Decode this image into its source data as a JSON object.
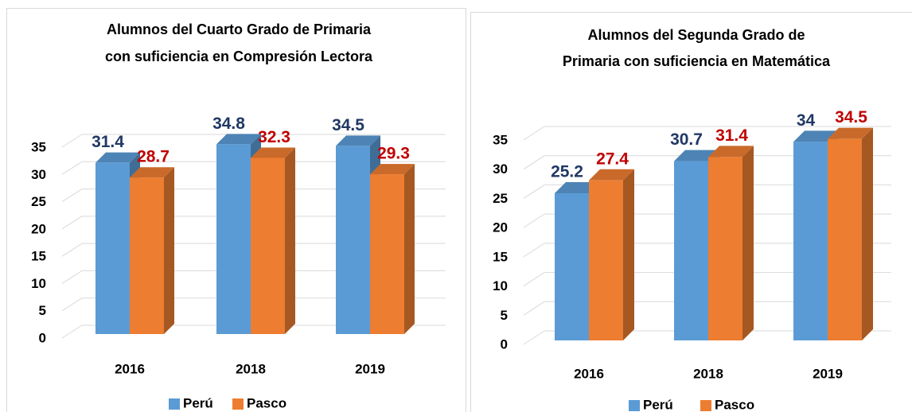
{
  "chart_data": [
    {
      "type": "bar3d",
      "title": [
        "Alumnos del Cuarto Grado de Primaria",
        "con suficiencia en Compresión Lectora"
      ],
      "categories": [
        "2016",
        "2018",
        "2019"
      ],
      "series": [
        {
          "name": "Perú",
          "color": "#5b9bd5",
          "label_color": "#203864",
          "values": [
            31.4,
            34.8,
            34.5
          ]
        },
        {
          "name": "Pasco",
          "color": "#ed7d31",
          "label_color": "#c00000",
          "values": [
            28.7,
            32.3,
            29.3
          ]
        }
      ],
      "ylim": [
        0,
        35
      ],
      "yticks": [
        0,
        5,
        10,
        15,
        20,
        25,
        30,
        35
      ],
      "grid": true,
      "legend": "bottom"
    },
    {
      "type": "bar3d",
      "title": [
        "Alumnos del Segunda Grado de",
        "Primaria con suficiencia en Matemática"
      ],
      "categories": [
        "2016",
        "2018",
        "2019"
      ],
      "series": [
        {
          "name": "Perú",
          "color": "#5b9bd5",
          "label_color": "#203864",
          "values": [
            25.2,
            30.7,
            34
          ]
        },
        {
          "name": "Pasco",
          "color": "#ed7d31",
          "label_color": "#c00000",
          "values": [
            27.4,
            31.4,
            34.5
          ]
        }
      ],
      "ylim": [
        0,
        35
      ],
      "yticks": [
        0,
        5,
        10,
        15,
        20,
        25,
        30,
        35
      ],
      "grid": true,
      "legend": "bottom"
    }
  ]
}
